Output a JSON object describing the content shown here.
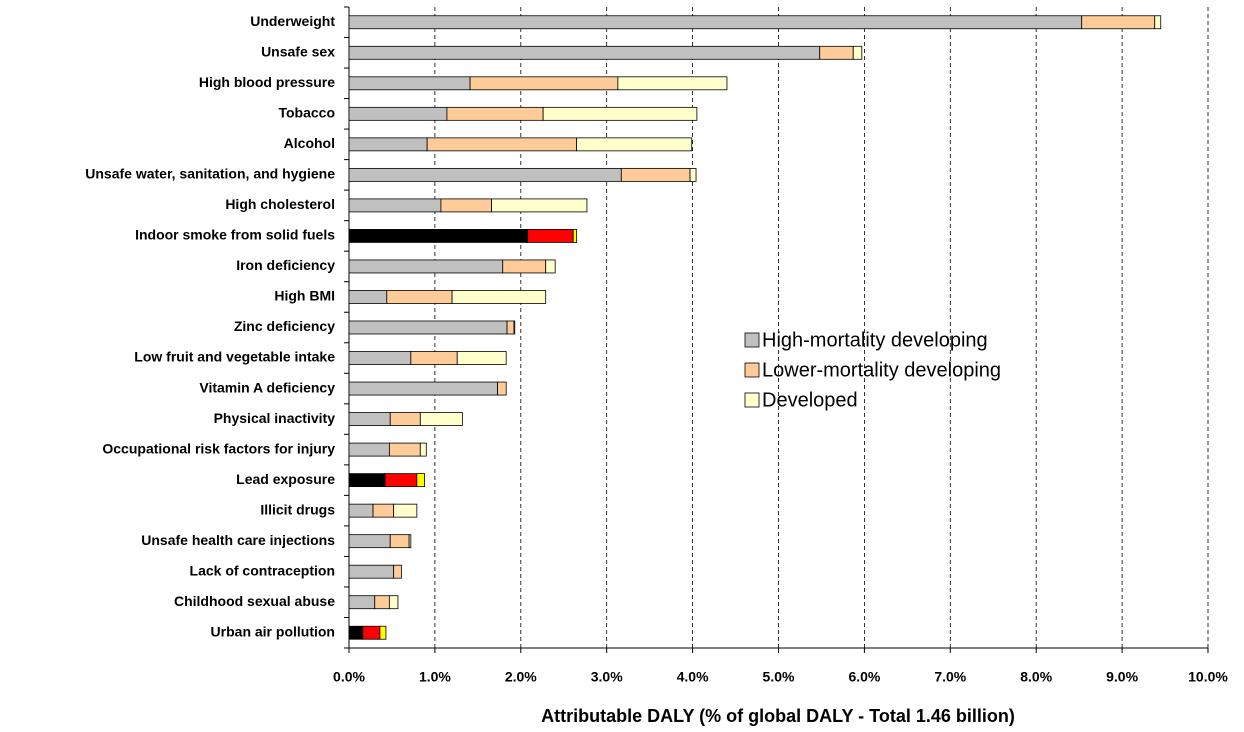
{
  "chart_data": {
    "type": "stacked_barh",
    "x_label": "Attributable DALY (% of global DALY - Total 1.46 billion)",
    "categories": [
      "Underweight",
      "Unsafe sex",
      "High blood pressure",
      "Tobacco",
      "Alcohol",
      "Unsafe water, sanitation, and hygiene",
      "High cholesterol",
      "Indoor smoke from solid fuels",
      "Iron deficiency",
      "High BMI",
      "Zinc deficiency",
      "Low fruit and vegetable intake",
      "Vitamin A deficiency",
      "Physical inactivity",
      "Occupational risk factors for injury",
      "Lead exposure",
      "Illicit drugs",
      "Unsafe health care injections",
      "Lack of contraception",
      "Childhood sexual abuse",
      "Urban air pollution"
    ],
    "series": [
      {
        "name": "High-mortality developing",
        "color": "#c0c0c0",
        "point_colors": [
          "#c0c0c0",
          "#c0c0c0",
          "#c0c0c0",
          "#c0c0c0",
          "#c0c0c0",
          "#c0c0c0",
          "#c0c0c0",
          "#000000",
          "#c0c0c0",
          "#c0c0c0",
          "#c0c0c0",
          "#c0c0c0",
          "#c0c0c0",
          "#c0c0c0",
          "#c0c0c0",
          "#000000",
          "#c0c0c0",
          "#c0c0c0",
          "#c0c0c0",
          "#c0c0c0",
          "#000000"
        ],
        "values": [
          8.53,
          5.48,
          1.41,
          1.14,
          0.91,
          3.17,
          1.07,
          2.08,
          1.79,
          0.44,
          1.84,
          0.72,
          1.73,
          0.48,
          0.47,
          0.42,
          0.28,
          0.48,
          0.52,
          0.3,
          0.16
        ]
      },
      {
        "name": "Lower-mortality developing",
        "color": "#ffcc99",
        "point_colors": [
          "#ffcc99",
          "#ffcc99",
          "#ffcc99",
          "#ffcc99",
          "#ffcc99",
          "#ffcc99",
          "#ffcc99",
          "#ff0000",
          "#ffcc99",
          "#ffcc99",
          "#ffcc99",
          "#ffcc99",
          "#ffcc99",
          "#ffcc99",
          "#ffcc99",
          "#ff0000",
          "#ffcc99",
          "#ffcc99",
          "#ffcc99",
          "#ffcc99",
          "#ff0000"
        ],
        "values": [
          0.85,
          0.39,
          1.72,
          1.12,
          1.74,
          0.8,
          0.59,
          0.53,
          0.5,
          0.76,
          0.08,
          0.54,
          0.1,
          0.35,
          0.36,
          0.37,
          0.24,
          0.22,
          0.09,
          0.17,
          0.2
        ]
      },
      {
        "name": "Developed",
        "color": "#ffffcc",
        "point_colors": [
          "#ffffcc",
          "#ffffcc",
          "#ffffcc",
          "#ffffcc",
          "#ffffcc",
          "#ffffcc",
          "#ffffcc",
          "#ffff00",
          "#ffffcc",
          "#ffffcc",
          "#ffffcc",
          "#ffffcc",
          "#ffffcc",
          "#ffffcc",
          "#ffffcc",
          "#ffff00",
          "#ffffcc",
          "#ffffcc",
          "#ffffcc",
          "#ffffcc",
          "#ffff00"
        ],
        "values": [
          0.07,
          0.1,
          1.27,
          1.79,
          1.34,
          0.07,
          1.11,
          0.04,
          0.11,
          1.09,
          0.01,
          0.57,
          0.0,
          0.49,
          0.07,
          0.09,
          0.27,
          0.02,
          0.0,
          0.1,
          0.07
        ]
      }
    ],
    "xlim": [
      0,
      10
    ],
    "xticks": [
      {
        "value": 0,
        "label": "0.0%"
      },
      {
        "value": 1,
        "label": "1.0%"
      },
      {
        "value": 2,
        "label": "2.0%"
      },
      {
        "value": 3,
        "label": "3.0%"
      },
      {
        "value": 4,
        "label": "4.0%"
      },
      {
        "value": 5,
        "label": "5.0%"
      },
      {
        "value": 6,
        "label": "6.0%"
      },
      {
        "value": 7,
        "label": "7.0%"
      },
      {
        "value": 8,
        "label": "8.0%"
      },
      {
        "value": 9,
        "label": "9.0%"
      },
      {
        "value": 10,
        "label": "10.0%"
      }
    ],
    "grid": true,
    "legend": "center-right"
  }
}
